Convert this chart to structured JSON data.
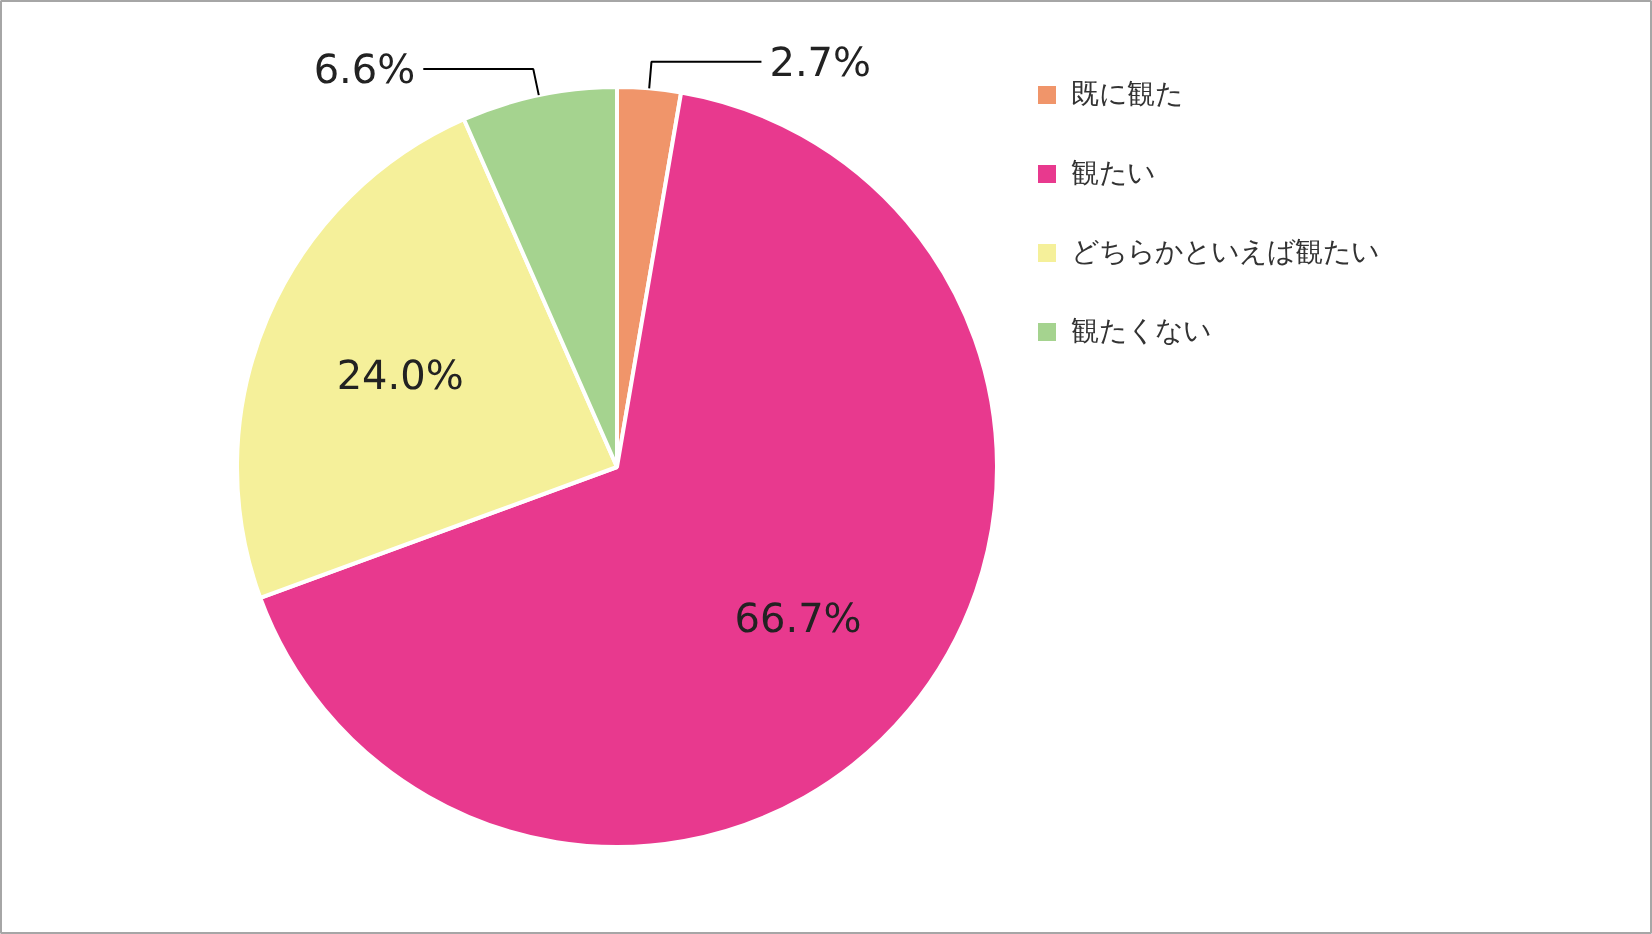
{
  "chart_data": {
    "type": "pie",
    "categories": [
      "既に観た",
      "観たい",
      "どちらかといえば観たい",
      "観たくない"
    ],
    "values": [
      2.7,
      66.7,
      24.0,
      6.6
    ],
    "colors": [
      "#f0956a",
      "#e8398e",
      "#f5f09a",
      "#a5d38f"
    ],
    "value_labels": [
      "2.7%",
      "66.7%",
      "24.0%",
      "6.6%"
    ],
    "legend": "right"
  }
}
